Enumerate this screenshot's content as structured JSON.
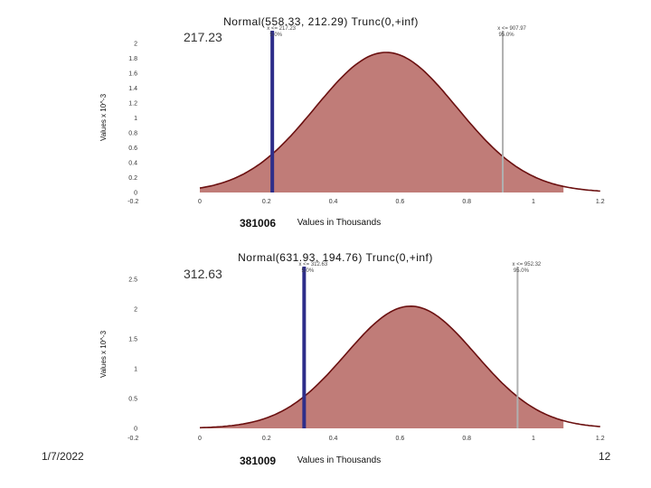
{
  "chart_data": [
    {
      "type": "area",
      "title": "Normal(558.33, 212.29) Trunc(0,+inf)",
      "xlabel": "Values in Thousands",
      "ylabel": "Values x 10^-3",
      "mean": 0.55833,
      "sd": 0.21229,
      "x_range": [
        0,
        1.09
      ],
      "xlim": [
        -0.2,
        1.2
      ],
      "ylim": [
        0,
        2
      ],
      "xticks": [
        "-0.2",
        "0",
        "0.2",
        "0.4",
        "0.6",
        "0.8",
        "1",
        "1.2"
      ],
      "yticks": [
        "0",
        "0.2",
        "0.4",
        "0.6",
        "0.8",
        "1",
        "1.2",
        "1.4",
        "1.6",
        "1.8",
        "2"
      ],
      "tick_values_y": [
        0,
        0.2,
        0.4,
        0.6,
        0.8,
        1,
        1.2,
        1.4,
        1.6,
        1.8,
        2
      ],
      "marker_left": {
        "x": 0.21723,
        "label": "x <= 217.23",
        "pct": "5.0%"
      },
      "marker_right": {
        "x": 0.90797,
        "label": "x <= 907.97",
        "pct": "95.0%"
      },
      "overlay_value": "217.23",
      "code": "381006"
    },
    {
      "type": "area",
      "title": "Normal(631.93, 194.76) Trunc(0,+inf)",
      "xlabel": "Values in Thousands",
      "ylabel": "Values x 10^-3",
      "mean": 0.63193,
      "sd": 0.19476,
      "x_range": [
        0,
        1.09
      ],
      "xlim": [
        -0.2,
        1.2
      ],
      "ylim": [
        0,
        2.5
      ],
      "xticks": [
        "-0.2",
        "0",
        "0.2",
        "0.4",
        "0.6",
        "0.8",
        "1",
        "1.2"
      ],
      "yticks": [
        "0",
        "0.5",
        "1",
        "1.5",
        "2",
        "2.5"
      ],
      "tick_values_y": [
        0,
        0.5,
        1,
        1.5,
        2,
        2.5
      ],
      "marker_left": {
        "x": 0.31263,
        "label": "x <= 312.63",
        "pct": "5.0%"
      },
      "marker_right": {
        "x": 0.95232,
        "label": "x <= 952.32",
        "pct": "95.0%"
      },
      "overlay_value": "312.63",
      "code": "381009"
    }
  ],
  "colors": {
    "fill": "#c07c78",
    "curve": "#6b1010",
    "marker_left": "#2e2e8a",
    "marker_right": "#b0b0b0"
  },
  "footer": {
    "date": "1/7/2022",
    "page": "12"
  }
}
